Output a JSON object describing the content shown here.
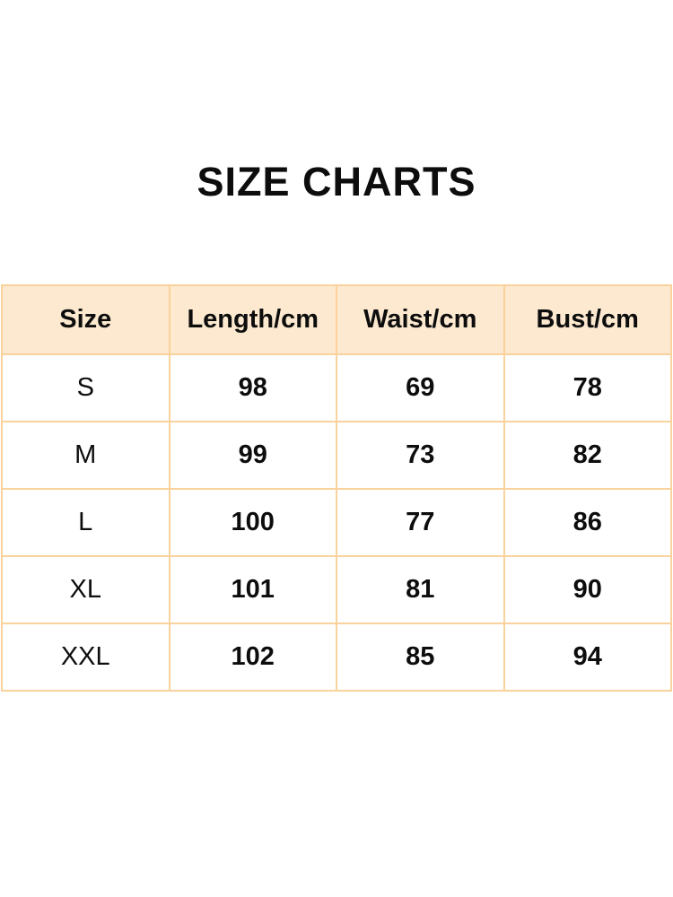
{
  "page": {
    "title": "SIZE CHARTS"
  },
  "colors": {
    "background": "#ffffff",
    "header_bg": "#fce9cf",
    "grid_border": "#f9d29c",
    "text": "#0d0d0d"
  },
  "chart_data": {
    "type": "table",
    "title": "SIZE CHARTS",
    "columns": [
      "Size",
      "Length/cm",
      "Waist/cm",
      "Bust/cm"
    ],
    "rows": [
      [
        "S",
        "98",
        "69",
        "78"
      ],
      [
        "M",
        "99",
        "73",
        "82"
      ],
      [
        "L",
        "100",
        "77",
        "86"
      ],
      [
        "XL",
        "101",
        "81",
        "90"
      ],
      [
        "XXL",
        "102",
        "85",
        "94"
      ]
    ],
    "layout": {
      "columns_equal_width": true,
      "header_fill": "#fce9cf",
      "grid_on": true
    }
  }
}
